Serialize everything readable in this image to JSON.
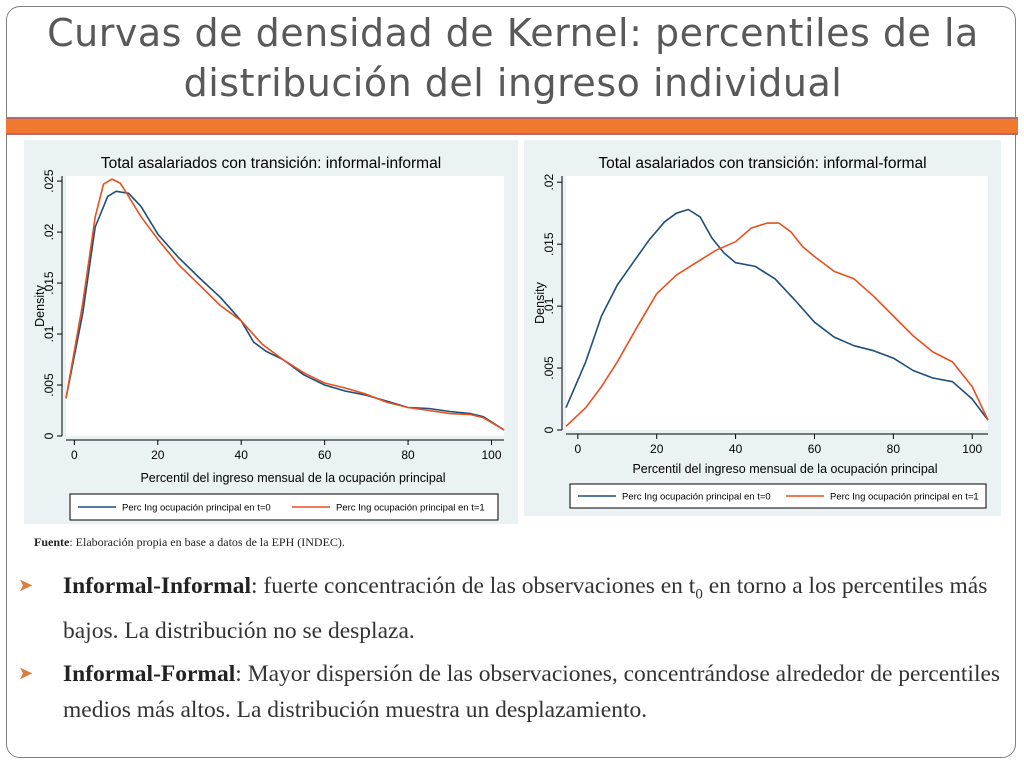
{
  "slide": {
    "title_line1": "Curvas de densidad de Kernel: percentiles de la",
    "title_line2": "distribución del ingreso individual",
    "source_label": "Fuente",
    "source_text": ": Elaboración propia en base a datos de la EPH (INDEC).",
    "bullets": [
      {
        "bold": "Informal-Informal",
        "text_a": ": fuerte concentración de las observaciones en t",
        "sub": "0",
        "text_b": " en torno a los percentiles más bajos. La distribución no se desplaza."
      },
      {
        "bold": "Informal-Formal",
        "text_a": ": Mayor dispersión de las observaciones, concentrándose alrededor de percentiles medios más altos. La distribución muestra un desplazamiento.",
        "sub": "",
        "text_b": ""
      }
    ],
    "colors": {
      "accent": "#f0792f",
      "t0": "#1f4e79",
      "t1": "#e8501e",
      "panel": "#eaf2f3"
    }
  },
  "chart_data": [
    {
      "type": "line",
      "title": "Total asalariados con transición: informal-informal",
      "xlabel": "Percentil del ingreso mensual de la ocupación principal",
      "ylabel": "Density",
      "xlim": [
        -2,
        103
      ],
      "ylim": [
        0,
        0.0255
      ],
      "xticks": [
        0,
        20,
        40,
        60,
        80,
        100
      ],
      "xtick_labels": [
        "0",
        "20",
        "40",
        "60",
        "80",
        "100"
      ],
      "yticks": [
        0,
        0.005,
        0.01,
        0.015,
        0.02,
        0.025
      ],
      "ytick_labels": [
        "0",
        ".005",
        ".01",
        ".015",
        ".02",
        ".025"
      ],
      "grid": false,
      "series": [
        {
          "name": "Perc Ing ocupación principal en t=0",
          "x": [
            -2,
            2,
            5,
            8,
            10,
            13,
            16,
            20,
            25,
            30,
            35,
            40,
            43,
            46,
            50,
            55,
            60,
            65,
            70,
            75,
            80,
            85,
            90,
            95,
            98,
            103
          ],
          "values": [
            0.0037,
            0.012,
            0.0205,
            0.0235,
            0.024,
            0.0238,
            0.0225,
            0.0198,
            0.0175,
            0.0155,
            0.0136,
            0.0113,
            0.0092,
            0.0083,
            0.0075,
            0.006,
            0.005,
            0.0044,
            0.004,
            0.0034,
            0.0028,
            0.0027,
            0.0024,
            0.0022,
            0.0019,
            0.0006
          ]
        },
        {
          "name": "Perc Ing ocupación principal en t=1",
          "x": [
            -2,
            2,
            5,
            7,
            9,
            11,
            13,
            16,
            20,
            25,
            30,
            35,
            40,
            45,
            50,
            55,
            60,
            65,
            70,
            75,
            80,
            85,
            90,
            95,
            98,
            103
          ],
          "values": [
            0.0037,
            0.013,
            0.0215,
            0.0247,
            0.0252,
            0.0248,
            0.0235,
            0.0215,
            0.0193,
            0.0168,
            0.0148,
            0.0128,
            0.0113,
            0.009,
            0.0075,
            0.0062,
            0.0052,
            0.0047,
            0.0041,
            0.0033,
            0.0028,
            0.0025,
            0.0022,
            0.0021,
            0.0018,
            0.0006
          ]
        }
      ]
    },
    {
      "type": "line",
      "title": "Total asalariados con transición: informal-formal",
      "xlabel": "Percentil del ingreso mensual de la ocupación principal",
      "ylabel": "Density",
      "xlim": [
        -3,
        104
      ],
      "ylim": [
        0,
        0.0205
      ],
      "xticks": [
        0,
        20,
        40,
        60,
        80,
        100
      ],
      "xtick_labels": [
        "0",
        "20",
        "40",
        "60",
        "80",
        "100"
      ],
      "yticks": [
        0,
        0.005,
        0.01,
        0.015,
        0.02
      ],
      "ytick_labels": [
        "0",
        ".005",
        ".01",
        ".015",
        ".02"
      ],
      "grid": false,
      "series": [
        {
          "name": "Perc Ing ocupación principal en t=0",
          "x": [
            -3,
            2,
            6,
            10,
            14,
            18,
            22,
            25,
            28,
            31,
            34,
            37,
            40,
            45,
            50,
            55,
            60,
            65,
            70,
            75,
            80,
            85,
            90,
            95,
            100,
            104
          ],
          "values": [
            0.0018,
            0.0055,
            0.0092,
            0.0117,
            0.0135,
            0.0153,
            0.0168,
            0.0175,
            0.0178,
            0.0172,
            0.0155,
            0.0143,
            0.0135,
            0.0132,
            0.0122,
            0.0105,
            0.0087,
            0.0075,
            0.0068,
            0.0064,
            0.0058,
            0.0048,
            0.0042,
            0.0039,
            0.0025,
            0.0008
          ]
        },
        {
          "name": "Perc Ing ocupación principal en t=1",
          "x": [
            -3,
            2,
            6,
            10,
            15,
            20,
            25,
            30,
            35,
            40,
            44,
            48,
            51,
            54,
            57,
            60,
            65,
            70,
            75,
            80,
            85,
            90,
            95,
            100,
            104
          ],
          "values": [
            0.0003,
            0.0018,
            0.0035,
            0.0055,
            0.0083,
            0.011,
            0.0125,
            0.0135,
            0.0145,
            0.0152,
            0.0163,
            0.0167,
            0.0167,
            0.016,
            0.0148,
            0.014,
            0.0128,
            0.0122,
            0.0108,
            0.0092,
            0.0076,
            0.0063,
            0.0055,
            0.0035,
            0.0008
          ]
        }
      ]
    }
  ]
}
